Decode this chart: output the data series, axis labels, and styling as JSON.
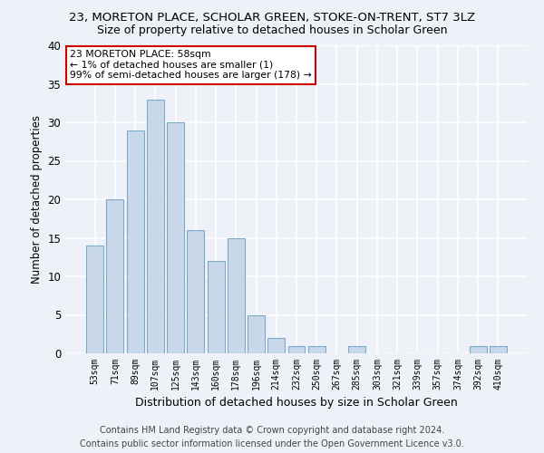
{
  "title": "23, MORETON PLACE, SCHOLAR GREEN, STOKE-ON-TRENT, ST7 3LZ",
  "subtitle": "Size of property relative to detached houses in Scholar Green",
  "xlabel": "Distribution of detached houses by size in Scholar Green",
  "ylabel": "Number of detached properties",
  "categories": [
    "53sqm",
    "71sqm",
    "89sqm",
    "107sqm",
    "125sqm",
    "143sqm",
    "160sqm",
    "178sqm",
    "196sqm",
    "214sqm",
    "232sqm",
    "250sqm",
    "267sqm",
    "285sqm",
    "303sqm",
    "321sqm",
    "339sqm",
    "357sqm",
    "374sqm",
    "392sqm",
    "410sqm"
  ],
  "values": [
    14,
    20,
    29,
    33,
    30,
    16,
    12,
    15,
    5,
    2,
    1,
    1,
    0,
    1,
    0,
    0,
    0,
    0,
    0,
    1,
    1
  ],
  "bar_color": "#c8d8e8",
  "bar_edge_color": "#7aaac8",
  "annotation_text": "23 MORETON PLACE: 58sqm\n← 1% of detached houses are smaller (1)\n99% of semi-detached houses are larger (178) →",
  "annotation_box_color": "#ffffff",
  "annotation_box_edge_color": "#cc0000",
  "ylim": [
    0,
    40
  ],
  "yticks": [
    0,
    5,
    10,
    15,
    20,
    25,
    30,
    35,
    40
  ],
  "footer_line1": "Contains HM Land Registry data © Crown copyright and database right 2024.",
  "footer_line2": "Contains public sector information licensed under the Open Government Licence v3.0.",
  "bg_color": "#eef2f8",
  "grid_color": "#ffffff",
  "title_fontsize": 9.5,
  "subtitle_fontsize": 9,
  "xlabel_fontsize": 9,
  "ylabel_fontsize": 8.5,
  "footer_fontsize": 7
}
